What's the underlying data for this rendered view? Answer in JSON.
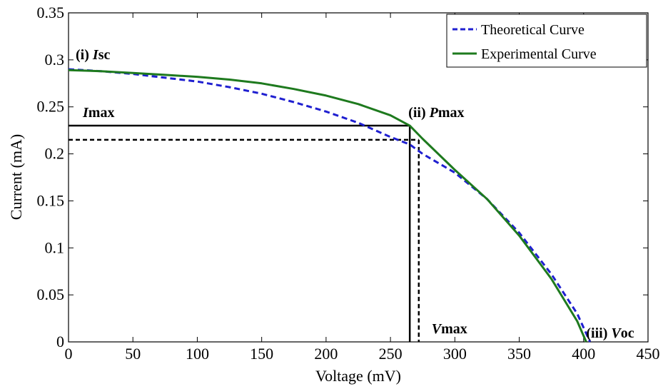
{
  "chart_data": {
    "type": "line",
    "xlabel": "Voltage (mV)",
    "ylabel": "Current (mA)",
    "xlim": [
      0,
      450
    ],
    "ylim": [
      0,
      0.35
    ],
    "xticks": [
      0,
      50,
      100,
      150,
      200,
      250,
      300,
      350,
      400,
      450
    ],
    "yticks": [
      0,
      0.05,
      0.1,
      0.15,
      0.2,
      0.25,
      0.3,
      0.35
    ],
    "ytick_labels": [
      "0",
      "0.05",
      "0.1",
      "0.15",
      "0.2",
      "0.25",
      "0.3",
      "0.35"
    ],
    "grid": false,
    "legend_position": "top-right",
    "series": [
      {
        "name": "Theoretical Curve",
        "color": "#1f1fd0",
        "style": "dashed",
        "x": [
          0,
          25,
          50,
          75,
          100,
          125,
          150,
          175,
          200,
          225,
          250,
          265,
          275,
          300,
          325,
          350,
          375,
          395,
          405
        ],
        "y": [
          0.29,
          0.288,
          0.285,
          0.281,
          0.277,
          0.271,
          0.264,
          0.255,
          0.245,
          0.233,
          0.218,
          0.21,
          0.2,
          0.18,
          0.152,
          0.116,
          0.072,
          0.03,
          0.0
        ]
      },
      {
        "name": "Experimental Curve",
        "color": "#1e7a1e",
        "style": "solid",
        "x": [
          0,
          25,
          50,
          75,
          100,
          125,
          150,
          175,
          200,
          225,
          250,
          265,
          275,
          300,
          325,
          350,
          375,
          395,
          402
        ],
        "y": [
          0.289,
          0.288,
          0.286,
          0.284,
          0.282,
          0.279,
          0.275,
          0.269,
          0.262,
          0.253,
          0.241,
          0.23,
          0.216,
          0.183,
          0.152,
          0.113,
          0.067,
          0.022,
          0.0
        ]
      }
    ],
    "reference_lines": [
      {
        "style": "solid",
        "color": "#000000",
        "current": 0.23,
        "voltage": 265
      },
      {
        "style": "dashed",
        "color": "#000000",
        "current": 0.215,
        "voltage": 272
      }
    ],
    "annotations": [
      {
        "id": "isc",
        "prefix": "(i) ",
        "symbol": "I",
        "suffix": "sc",
        "x": 0,
        "y": 0.29
      },
      {
        "id": "imax",
        "prefix": "",
        "symbol": "I",
        "suffix": "max",
        "x": 0,
        "y": 0.23
      },
      {
        "id": "pmax",
        "prefix": "(ii) ",
        "symbol": "P",
        "suffix": "max",
        "x": 265,
        "y": 0.23
      },
      {
        "id": "vmax",
        "prefix": "",
        "symbol": "V",
        "suffix": "max",
        "x": 272,
        "y": 0.0
      },
      {
        "id": "voc",
        "prefix": "(iii) ",
        "symbol": "V",
        "suffix": "oc",
        "x": 402,
        "y": 0.0
      }
    ]
  }
}
